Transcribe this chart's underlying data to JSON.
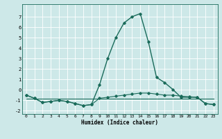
{
  "xlabel": "Humidex (Indice chaleur)",
  "ylabel": "",
  "background_color": "#cde8e8",
  "grid_color": "#ffffff",
  "line_color": "#1a6b5a",
  "xlim": [
    -0.5,
    23.5
  ],
  "ylim": [
    -2.3,
    8.2
  ],
  "yticks": [
    -2,
    -1,
    0,
    1,
    2,
    3,
    4,
    5,
    6,
    7
  ],
  "xticks": [
    0,
    1,
    2,
    3,
    4,
    5,
    6,
    7,
    8,
    9,
    10,
    11,
    12,
    13,
    14,
    15,
    16,
    17,
    18,
    19,
    20,
    21,
    22,
    23
  ],
  "series": [
    {
      "x": [
        0,
        1,
        2,
        3,
        4,
        5,
        6,
        7,
        8,
        9,
        10,
        11,
        12,
        13,
        14,
        15,
        16,
        17,
        18,
        19,
        20,
        21,
        22,
        23
      ],
      "y": [
        -0.5,
        -0.8,
        -1.2,
        -1.1,
        -1.0,
        -1.1,
        -1.3,
        -1.5,
        -1.4,
        0.5,
        3.0,
        5.0,
        6.4,
        7.0,
        7.3,
        4.6,
        1.2,
        0.7,
        0.05,
        -0.7,
        -0.7,
        -0.7,
        -1.3,
        -1.4
      ],
      "marker": "D",
      "markersize": 1.8,
      "linewidth": 1.0
    },
    {
      "x": [
        0,
        1,
        2,
        3,
        4,
        5,
        6,
        7,
        8,
        9,
        10,
        11,
        12,
        13,
        14,
        15,
        16,
        17,
        18,
        19,
        20,
        21,
        22,
        23
      ],
      "y": [
        -0.5,
        -0.8,
        -1.2,
        -1.1,
        -1.0,
        -1.1,
        -1.3,
        -1.5,
        -1.4,
        -0.8,
        -0.7,
        -0.6,
        -0.5,
        -0.4,
        -0.3,
        -0.3,
        -0.4,
        -0.5,
        -0.5,
        -0.6,
        -0.65,
        -0.7,
        -1.3,
        -1.4
      ],
      "marker": "D",
      "markersize": 1.8,
      "linewidth": 0.8
    },
    {
      "x": [
        0,
        23
      ],
      "y": [
        -0.85,
        -0.85
      ],
      "marker": null,
      "markersize": 0,
      "linewidth": 0.8
    }
  ]
}
